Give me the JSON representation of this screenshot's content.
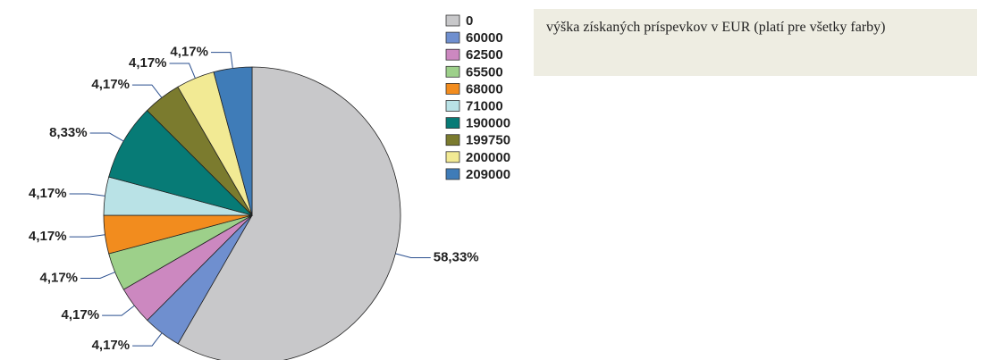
{
  "chart_data": {
    "type": "pie",
    "annotation": "výška získaných príspevkov  v EUR (platí pre všetky farby)",
    "categories": [
      "0",
      "60000",
      "62500",
      "65500",
      "68000",
      "71000",
      "190000",
      "199750",
      "200000",
      "209000"
    ],
    "values": [
      58.33,
      4.17,
      4.17,
      4.17,
      4.17,
      4.17,
      8.33,
      4.17,
      4.17,
      4.17
    ],
    "value_labels": [
      "58,33%",
      "4,17%",
      "4,17%",
      "4,17%",
      "4,17%",
      "4,17%",
      "8,33%",
      "4,17%",
      "4,17%",
      "4,17%"
    ],
    "colors": [
      "#c8c8ca",
      "#6f8fcf",
      "#cc88c0",
      "#9dd08a",
      "#f28c1e",
      "#b9e2e6",
      "#077b76",
      "#7b7b2e",
      "#f2ea94",
      "#3f7cb8"
    ],
    "legend": "right"
  }
}
